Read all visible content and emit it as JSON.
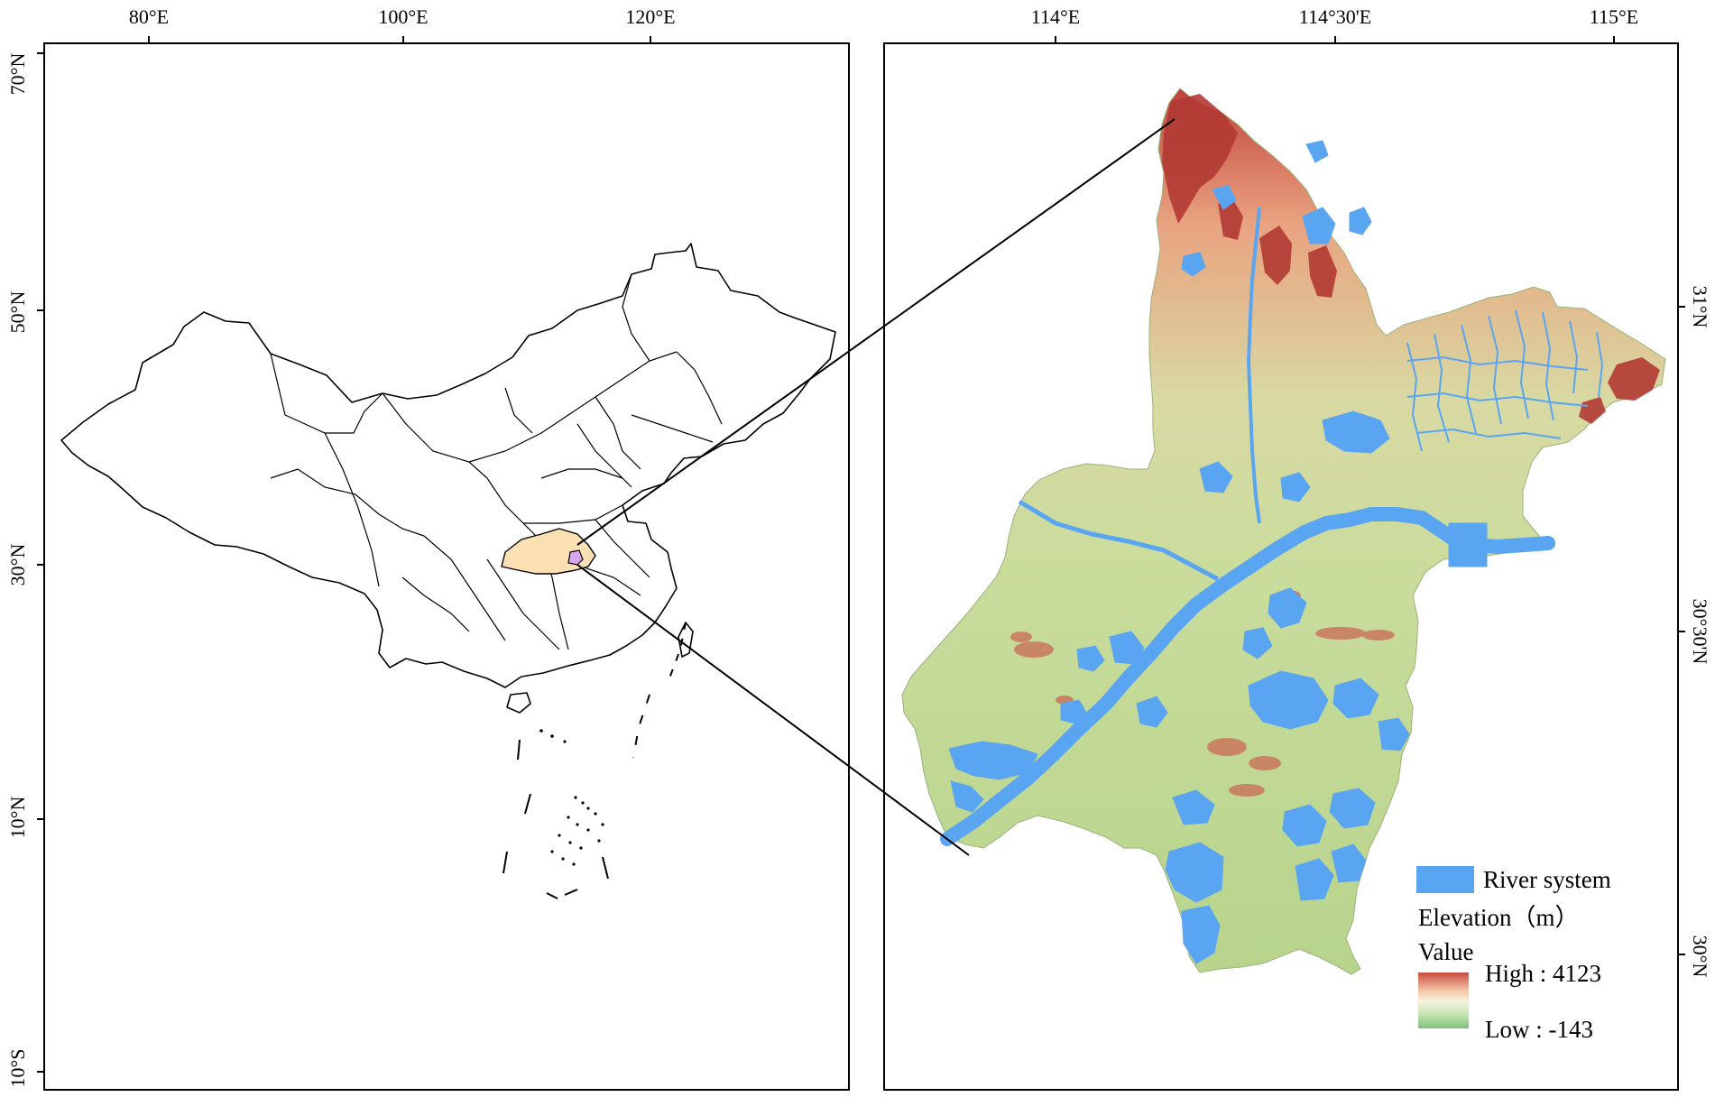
{
  "left_map": {
    "top_labels": [
      "80°E",
      "100°E",
      "120°E"
    ],
    "left_labels": [
      "70°N",
      "50°N",
      "30°N",
      "10°N",
      "10°S"
    ]
  },
  "right_map": {
    "top_labels": [
      "114°E",
      "114°30'E",
      "115°E"
    ],
    "right_labels": [
      "31°N",
      "30°30'N",
      "30°N"
    ]
  },
  "legend": {
    "river_label": "River system",
    "elevation_title": "Elevation（m）",
    "value_label": "Value",
    "high_label": "High : 4123",
    "low_label": "Low : -143"
  },
  "colors": {
    "river": "#5aa5f2",
    "high": "#c84b3f",
    "low": "#7fc17a",
    "mid": "#c6d99c",
    "highlight_province": "#fbe0b4",
    "highlight_city": "#d8a6ee"
  }
}
